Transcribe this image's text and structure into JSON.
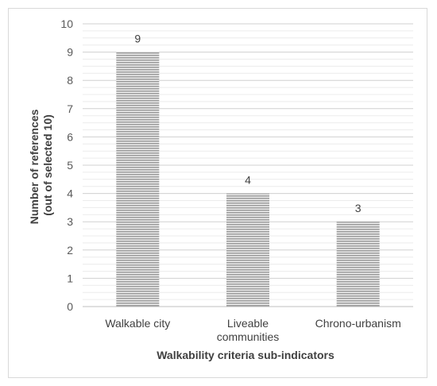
{
  "chart_data": {
    "type": "bar",
    "categories": [
      "Walkable city",
      "Liveable communities",
      "Chrono-urbanism"
    ],
    "category_lines": [
      [
        "Walkable city"
      ],
      [
        "Liveable",
        "communities"
      ],
      [
        "Chrono-urbanism"
      ]
    ],
    "values": [
      9,
      4,
      3
    ],
    "data_labels": [
      "9",
      "4",
      "3"
    ],
    "title": "",
    "xlabel": "Walkability criteria sub-indicators",
    "ylabel_lines": [
      "Number of references",
      "(out of selected 10)"
    ],
    "ylim": [
      0,
      10
    ],
    "yticks": [
      "0",
      "1",
      "2",
      "3",
      "4",
      "5",
      "6",
      "7",
      "8",
      "9",
      "10"
    ],
    "grid": true,
    "legend": "none",
    "bar_color": "#a6a6a6",
    "bar_pattern": "horizontal-stripes"
  }
}
